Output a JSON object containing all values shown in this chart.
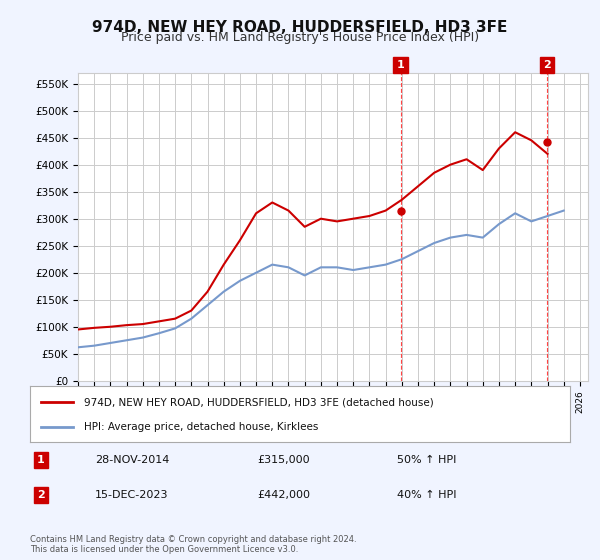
{
  "title": "974D, NEW HEY ROAD, HUDDERSFIELD, HD3 3FE",
  "subtitle": "Price paid vs. HM Land Registry's House Price Index (HPI)",
  "title_fontsize": 11,
  "subtitle_fontsize": 9,
  "ylabel_ticks": [
    "£0",
    "£50K",
    "£100K",
    "£150K",
    "£200K",
    "£250K",
    "£300K",
    "£350K",
    "£400K",
    "£450K",
    "£500K",
    "£550K"
  ],
  "ytick_vals": [
    0,
    50000,
    100000,
    150000,
    200000,
    250000,
    300000,
    350000,
    400000,
    450000,
    500000,
    550000
  ],
  "ylim": [
    0,
    570000
  ],
  "xlim_start": 1995.0,
  "xlim_end": 2026.5,
  "background_color": "#f0f4ff",
  "plot_bg_color": "#ffffff",
  "grid_color": "#cccccc",
  "red_line_color": "#cc0000",
  "blue_line_color": "#7799cc",
  "vline_color": "#ff4444",
  "annotation_box_color": "#cc0000",
  "legend_box_color": "#333333",
  "footer_text": "Contains HM Land Registry data © Crown copyright and database right 2024.\nThis data is licensed under the Open Government Licence v3.0.",
  "legend_line1": "974D, NEW HEY ROAD, HUDDERSFIELD, HD3 3FE (detached house)",
  "legend_line2": "HPI: Average price, detached house, Kirklees",
  "sale1_label": "1",
  "sale1_date": "28-NOV-2014",
  "sale1_price": "£315,000",
  "sale1_hpi": "50% ↑ HPI",
  "sale1_x": 2014.92,
  "sale1_y": 315000,
  "sale2_label": "2",
  "sale2_date": "15-DEC-2023",
  "sale2_price": "£442,000",
  "sale2_hpi": "40% ↑ HPI",
  "sale2_x": 2023.96,
  "sale2_y": 442000,
  "hpi_years": [
    1995,
    1996,
    1997,
    1998,
    1999,
    2000,
    2001,
    2002,
    2003,
    2004,
    2005,
    2006,
    2007,
    2008,
    2009,
    2010,
    2011,
    2012,
    2013,
    2014,
    2015,
    2016,
    2017,
    2018,
    2019,
    2020,
    2021,
    2022,
    2023,
    2024,
    2025
  ],
  "hpi_values": [
    62000,
    65000,
    70000,
    75000,
    80000,
    88000,
    97000,
    115000,
    140000,
    165000,
    185000,
    200000,
    215000,
    210000,
    195000,
    210000,
    210000,
    205000,
    210000,
    215000,
    225000,
    240000,
    255000,
    265000,
    270000,
    265000,
    290000,
    310000,
    295000,
    305000,
    315000
  ],
  "red_years": [
    1995,
    1996,
    1997,
    1998,
    1999,
    2000,
    2001,
    2002,
    2003,
    2004,
    2005,
    2006,
    2007,
    2008,
    2009,
    2010,
    2011,
    2012,
    2013,
    2014,
    2015,
    2016,
    2017,
    2018,
    2019,
    2020,
    2021,
    2022,
    2023,
    2024
  ],
  "red_values": [
    95000,
    98000,
    100000,
    103000,
    105000,
    110000,
    115000,
    130000,
    165000,
    215000,
    260000,
    310000,
    330000,
    315000,
    285000,
    300000,
    295000,
    300000,
    305000,
    315000,
    335000,
    360000,
    385000,
    400000,
    410000,
    390000,
    430000,
    460000,
    445000,
    420000
  ]
}
